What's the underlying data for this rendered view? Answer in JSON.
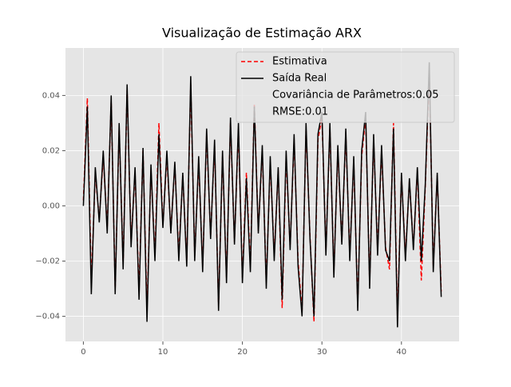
{
  "chart_data": {
    "type": "line",
    "title": "Visualização de Estimação ARX",
    "x": [
      0,
      0.5,
      1,
      1.5,
      2,
      2.5,
      3,
      3.5,
      4,
      4.5,
      5,
      5.5,
      6,
      6.5,
      7,
      7.5,
      8,
      8.5,
      9,
      9.5,
      10,
      10.5,
      11,
      11.5,
      12,
      12.5,
      13,
      13.5,
      14,
      14.5,
      15,
      15.5,
      16,
      16.5,
      17,
      17.5,
      18,
      18.5,
      19,
      19.5,
      20,
      20.5,
      21,
      21.5,
      22,
      22.5,
      23,
      23.5,
      24,
      24.5,
      25,
      25.5,
      26,
      26.5,
      27,
      27.5,
      28,
      28.5,
      29,
      29.5,
      30,
      30.5,
      31,
      31.5,
      32,
      32.5,
      33,
      33.5,
      34,
      34.5,
      35,
      35.5,
      36,
      36.5,
      37,
      37.5,
      38,
      38.5,
      39,
      39.5,
      40,
      40.5,
      41,
      41.5,
      42,
      42.5,
      43,
      43.5,
      44,
      44.5,
      45
    ],
    "series": [
      {
        "name": "Estimativa",
        "color": "#ff0000",
        "dashed": true,
        "values": [
          0.002,
          0.039,
          -0.028,
          0.012,
          -0.005,
          0.018,
          -0.008,
          0.038,
          -0.03,
          0.028,
          -0.021,
          0.042,
          -0.013,
          0.012,
          -0.031,
          0.02,
          -0.038,
          0.013,
          -0.018,
          0.03,
          -0.007,
          0.018,
          -0.009,
          0.015,
          -0.018,
          0.011,
          -0.02,
          0.044,
          -0.018,
          0.016,
          -0.022,
          0.026,
          -0.011,
          0.022,
          -0.036,
          0.018,
          -0.026,
          0.03,
          -0.013,
          0.028,
          -0.026,
          0.012,
          -0.022,
          0.037,
          -0.009,
          0.02,
          -0.028,
          0.016,
          -0.018,
          0.013,
          -0.037,
          0.018,
          -0.015,
          0.024,
          -0.02,
          -0.038,
          0.028,
          -0.011,
          -0.042,
          0.024,
          0.032,
          -0.016,
          0.028,
          -0.024,
          0.02,
          -0.013,
          0.026,
          -0.018,
          0.016,
          -0.036,
          0.018,
          0.032,
          -0.028,
          0.024,
          -0.016,
          0.02,
          -0.015,
          -0.023,
          0.03,
          -0.041,
          0.011,
          -0.018,
          0.009,
          -0.015,
          0.013,
          -0.027,
          0.007,
          0.049,
          -0.022,
          0.011,
          -0.031
        ]
      },
      {
        "name": "Saída Real",
        "color": "#000000",
        "dashed": false,
        "values": [
          0.0,
          0.036,
          -0.032,
          0.014,
          -0.006,
          0.02,
          -0.01,
          0.04,
          -0.032,
          0.03,
          -0.023,
          0.044,
          -0.015,
          0.014,
          -0.034,
          0.021,
          -0.042,
          0.015,
          -0.02,
          0.026,
          -0.008,
          0.02,
          -0.01,
          0.016,
          -0.02,
          0.012,
          -0.022,
          0.047,
          -0.02,
          0.018,
          -0.024,
          0.028,
          -0.012,
          0.024,
          -0.038,
          0.02,
          -0.028,
          0.032,
          -0.014,
          0.03,
          -0.028,
          0.01,
          -0.024,
          0.036,
          -0.01,
          0.022,
          -0.03,
          0.018,
          -0.02,
          0.014,
          -0.034,
          0.02,
          -0.016,
          0.026,
          -0.022,
          -0.04,
          0.03,
          -0.012,
          -0.04,
          0.026,
          0.034,
          -0.018,
          0.03,
          -0.026,
          0.022,
          -0.014,
          0.028,
          -0.02,
          0.018,
          -0.038,
          0.02,
          0.034,
          -0.03,
          0.026,
          -0.018,
          0.022,
          -0.016,
          -0.02,
          0.028,
          -0.044,
          0.012,
          -0.02,
          0.01,
          -0.016,
          0.014,
          -0.02,
          0.008,
          0.052,
          -0.024,
          0.012,
          -0.033
        ]
      }
    ],
    "legend_notes": [
      "Covariância de Parâmetros:0.05",
      "RMSE:0.01"
    ],
    "legend_position": "upper right",
    "xlim": [
      -2.25,
      47.25
    ],
    "xticks": [
      0,
      10,
      20,
      30,
      40
    ],
    "ylim": [
      -0.0491,
      0.0572
    ],
    "yticks": [
      {
        "value": -0.04,
        "label": "−0.04"
      },
      {
        "value": -0.02,
        "label": "−0.02"
      },
      {
        "value": 0,
        "label": "0.00"
      },
      {
        "value": 0.02,
        "label": "0.02"
      },
      {
        "value": 0.04,
        "label": "0.04"
      }
    ],
    "grid": true
  }
}
